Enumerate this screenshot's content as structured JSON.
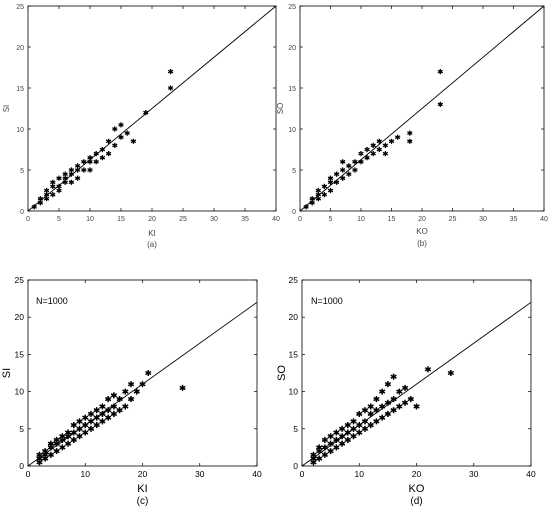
{
  "chart_data": [
    {
      "type": "scatter",
      "caption": "(a)",
      "xlabel": "KI",
      "ylabel": "SI",
      "xlim": [
        0,
        40
      ],
      "ylim": [
        0,
        25
      ],
      "xticks": [
        0,
        5,
        10,
        15,
        20,
        25,
        30,
        35,
        40
      ],
      "yticks": [
        0,
        5,
        10,
        15,
        20,
        25
      ],
      "annotation": "",
      "grid": false,
      "marker": "asterisk",
      "reference_line": {
        "x": [
          0,
          40
        ],
        "y": [
          0,
          25
        ]
      },
      "points": [
        [
          1,
          0.5
        ],
        [
          2,
          1
        ],
        [
          2,
          1.5
        ],
        [
          3,
          1.5
        ],
        [
          3,
          2
        ],
        [
          3,
          2.5
        ],
        [
          4,
          2
        ],
        [
          4,
          3
        ],
        [
          4,
          3.5
        ],
        [
          5,
          2.5
        ],
        [
          5,
          3
        ],
        [
          5,
          4
        ],
        [
          6,
          3.5
        ],
        [
          6,
          4
        ],
        [
          6,
          4.5
        ],
        [
          7,
          3.5
        ],
        [
          7,
          4.5
        ],
        [
          7,
          5
        ],
        [
          8,
          4
        ],
        [
          8,
          5
        ],
        [
          8,
          5.5
        ],
        [
          9,
          5
        ],
        [
          9,
          6
        ],
        [
          10,
          5
        ],
        [
          10,
          6
        ],
        [
          10,
          6.5
        ],
        [
          11,
          6
        ],
        [
          11,
          7
        ],
        [
          12,
          6.5
        ],
        [
          12,
          7.5
        ],
        [
          13,
          7
        ],
        [
          13,
          8.5
        ],
        [
          14,
          8
        ],
        [
          14,
          10
        ],
        [
          15,
          9
        ],
        [
          15,
          10.5
        ],
        [
          16,
          9.5
        ],
        [
          17,
          8.5
        ],
        [
          19,
          12
        ],
        [
          23,
          15
        ],
        [
          23,
          17
        ]
      ]
    },
    {
      "type": "scatter",
      "caption": "(b)",
      "xlabel": "KO",
      "ylabel": "SO",
      "xlim": [
        0,
        40
      ],
      "ylim": [
        0,
        25
      ],
      "xticks": [
        0,
        5,
        10,
        15,
        20,
        25,
        30,
        35,
        40
      ],
      "yticks": [
        0,
        5,
        10,
        15,
        20,
        25
      ],
      "annotation": "",
      "grid": false,
      "marker": "asterisk",
      "reference_line": {
        "x": [
          0,
          40
        ],
        "y": [
          0,
          25
        ]
      },
      "points": [
        [
          1,
          0.5
        ],
        [
          2,
          1
        ],
        [
          2,
          1.5
        ],
        [
          3,
          1.5
        ],
        [
          3,
          2
        ],
        [
          3,
          2.5
        ],
        [
          4,
          2
        ],
        [
          4,
          3
        ],
        [
          5,
          2.5
        ],
        [
          5,
          3.5
        ],
        [
          5,
          4
        ],
        [
          6,
          3.5
        ],
        [
          6,
          4.5
        ],
        [
          7,
          4
        ],
        [
          7,
          5
        ],
        [
          7,
          6
        ],
        [
          8,
          4.5
        ],
        [
          8,
          5.5
        ],
        [
          9,
          5
        ],
        [
          9,
          6
        ],
        [
          10,
          6
        ],
        [
          10,
          7
        ],
        [
          11,
          6.5
        ],
        [
          11,
          7.5
        ],
        [
          12,
          7
        ],
        [
          12,
          8
        ],
        [
          13,
          7.5
        ],
        [
          13,
          8.5
        ],
        [
          14,
          7
        ],
        [
          14,
          8
        ],
        [
          15,
          8.5
        ],
        [
          16,
          9
        ],
        [
          18,
          8.5
        ],
        [
          18,
          9.5
        ],
        [
          23,
          13
        ],
        [
          23,
          17
        ]
      ]
    },
    {
      "type": "scatter",
      "caption": "(c)",
      "xlabel": "KI",
      "ylabel": "SI",
      "xlim": [
        0,
        40
      ],
      "ylim": [
        0,
        25
      ],
      "xticks": [
        0,
        10,
        20,
        30,
        40
      ],
      "yticks": [
        0,
        5,
        10,
        15,
        20,
        25
      ],
      "annotation": "N=1000",
      "grid": false,
      "marker": "asterisk",
      "reference_line": {
        "x": [
          0,
          40
        ],
        "y": [
          0,
          22
        ]
      },
      "points": [
        [
          2,
          0.5
        ],
        [
          2,
          1
        ],
        [
          2,
          1.5
        ],
        [
          3,
          1
        ],
        [
          3,
          1.5
        ],
        [
          3,
          2
        ],
        [
          4,
          1.5
        ],
        [
          4,
          2.5
        ],
        [
          4,
          3
        ],
        [
          5,
          2
        ],
        [
          5,
          3
        ],
        [
          5,
          3.5
        ],
        [
          6,
          2.5
        ],
        [
          6,
          3.5
        ],
        [
          6,
          4
        ],
        [
          7,
          3
        ],
        [
          7,
          4
        ],
        [
          7,
          4.5
        ],
        [
          8,
          3.5
        ],
        [
          8,
          4.5
        ],
        [
          8,
          5.5
        ],
        [
          9,
          4
        ],
        [
          9,
          5
        ],
        [
          9,
          6
        ],
        [
          10,
          4.5
        ],
        [
          10,
          5.5
        ],
        [
          10,
          6.5
        ],
        [
          11,
          5
        ],
        [
          11,
          6
        ],
        [
          11,
          7
        ],
        [
          12,
          5.5
        ],
        [
          12,
          6.5
        ],
        [
          12,
          7.5
        ],
        [
          13,
          6
        ],
        [
          13,
          7
        ],
        [
          13,
          8
        ],
        [
          14,
          6.5
        ],
        [
          14,
          7.5
        ],
        [
          14,
          9
        ],
        [
          15,
          7
        ],
        [
          15,
          8
        ],
        [
          15,
          9.5
        ],
        [
          16,
          7.5
        ],
        [
          16,
          9
        ],
        [
          17,
          8
        ],
        [
          17,
          10
        ],
        [
          18,
          9
        ],
        [
          18,
          11
        ],
        [
          19,
          10
        ],
        [
          20,
          11
        ],
        [
          21,
          12.5
        ],
        [
          27,
          10.5
        ]
      ]
    },
    {
      "type": "scatter",
      "caption": "(d)",
      "xlabel": "KO",
      "ylabel": "SO",
      "xlim": [
        0,
        40
      ],
      "ylim": [
        0,
        25
      ],
      "xticks": [
        0,
        10,
        20,
        30,
        40
      ],
      "yticks": [
        0,
        5,
        10,
        15,
        20,
        25
      ],
      "annotation": "N=1000",
      "grid": false,
      "marker": "asterisk",
      "reference_line": {
        "x": [
          0,
          40
        ],
        "y": [
          0,
          22
        ]
      },
      "points": [
        [
          2,
          0.5
        ],
        [
          2,
          1
        ],
        [
          2,
          1.5
        ],
        [
          3,
          1
        ],
        [
          3,
          2
        ],
        [
          3,
          2.5
        ],
        [
          4,
          1.5
        ],
        [
          4,
          2.5
        ],
        [
          4,
          3.5
        ],
        [
          5,
          2
        ],
        [
          5,
          3
        ],
        [
          5,
          4
        ],
        [
          6,
          2.5
        ],
        [
          6,
          3.5
        ],
        [
          6,
          4.5
        ],
        [
          7,
          3
        ],
        [
          7,
          4
        ],
        [
          7,
          5
        ],
        [
          8,
          3.5
        ],
        [
          8,
          4.5
        ],
        [
          8,
          5.5
        ],
        [
          9,
          4
        ],
        [
          9,
          5
        ],
        [
          9,
          6
        ],
        [
          10,
          4.5
        ],
        [
          10,
          5.5
        ],
        [
          10,
          7
        ],
        [
          11,
          5
        ],
        [
          11,
          6
        ],
        [
          11,
          7.5
        ],
        [
          12,
          5.5
        ],
        [
          12,
          7
        ],
        [
          12,
          8
        ],
        [
          13,
          6
        ],
        [
          13,
          7.5
        ],
        [
          13,
          9
        ],
        [
          14,
          6.5
        ],
        [
          14,
          8
        ],
        [
          14,
          10
        ],
        [
          15,
          7
        ],
        [
          15,
          8.5
        ],
        [
          15,
          11
        ],
        [
          16,
          7.5
        ],
        [
          16,
          9
        ],
        [
          16,
          12
        ],
        [
          17,
          8
        ],
        [
          17,
          10
        ],
        [
          18,
          8.5
        ],
        [
          18,
          10.5
        ],
        [
          19,
          9
        ],
        [
          20,
          8
        ],
        [
          22,
          13
        ],
        [
          26,
          12.5
        ]
      ]
    }
  ]
}
